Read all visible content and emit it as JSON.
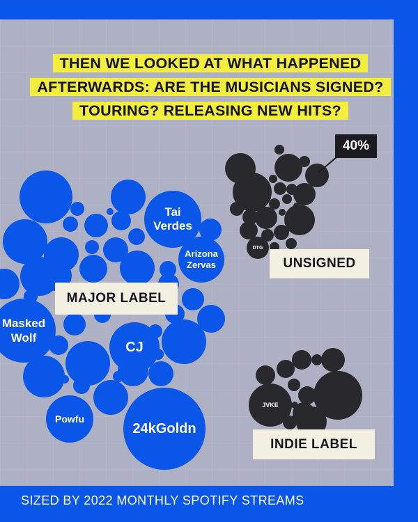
{
  "title": "THEN WE LOOKED AT WHAT HAPPENED AFTERWARDS: ARE THE MUSICIANS SIGNED? TOURING? RELEASING NEW HITS?",
  "groups": {
    "major_label": "MAJOR LABEL",
    "unsigned": "UNSIGNED",
    "indie_label": "INDIE LABEL"
  },
  "callout": "40%",
  "artists": {
    "tai_verdes": "Tai Verdes",
    "arizona_zervas": "Arizona Zervas",
    "masked_wolf": "Masked Wolf",
    "cj": "CJ",
    "powfu": "Powfu",
    "goldn": "24kGoldn",
    "dtg": "DTG",
    "jvke": "JVKE"
  },
  "footer": "SIZED BY 2022 MONTHLY SPOTIFY STREAMS",
  "colors": {
    "background": "#0a56e8",
    "panel": "#aeb0c4",
    "highlight": "#f3ee3e",
    "major_label_bubble": "#0a56e8",
    "unsigned_bubble": "#28282d",
    "indie_bubble": "#28282d",
    "tag": "#f3efe1"
  }
}
